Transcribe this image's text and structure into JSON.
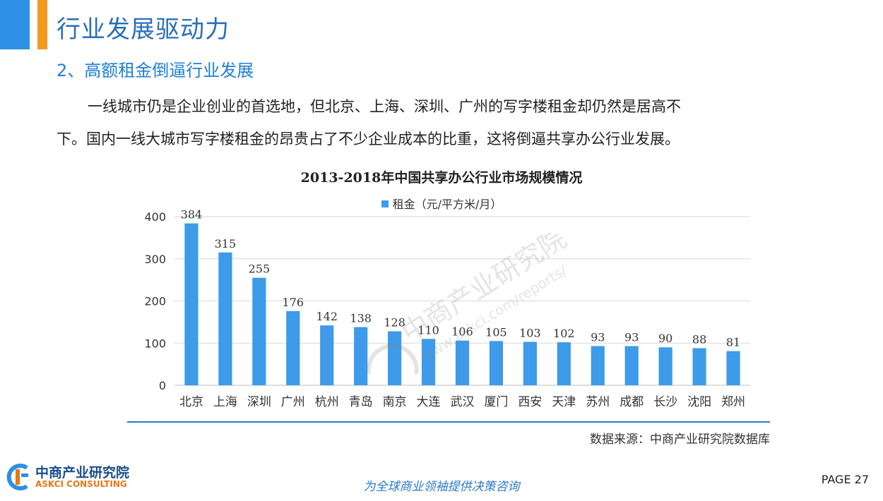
{
  "header": {
    "title": "行业发展驱动力",
    "section": "2、高额租金倒逼行业发展"
  },
  "body": {
    "paragraph_line1": "一线城市仍是企业创业的首选地，但北京、上海、深圳、广州的写字楼租金却仍然是居高不",
    "paragraph_line2": "下。国内一线大城市写字楼租金的昂贵占了不少企业成本的比重，这将倒逼共享办公行业发展。"
  },
  "chart_data": {
    "type": "bar",
    "title": "2013-2018年中国共享办公行业市场规模情况",
    "categories": [
      "北京",
      "上海",
      "深圳",
      "广州",
      "杭州",
      "青岛",
      "南京",
      "大连",
      "武汉",
      "厦门",
      "西安",
      "天津",
      "苏州",
      "成都",
      "长沙",
      "沈阳",
      "郑州"
    ],
    "series": [
      {
        "name": "租金（元/平方米/月）",
        "values": [
          384,
          315,
          255,
          176,
          142,
          138,
          128,
          110,
          106,
          105,
          103,
          102,
          93,
          93,
          90,
          88,
          81
        ],
        "color": "#3d9be9"
      }
    ],
    "ylim": [
      0,
      400
    ],
    "yticks": [
      0,
      100,
      200,
      300,
      400
    ],
    "grid": true,
    "legend": "top-center",
    "data_labels": true
  },
  "source": "数据来源：中商产业研究院数据库",
  "footer": {
    "logo_name": "中商产业研究院",
    "logo_sub": "ASKCI CONSULTING",
    "slogan": "为全球商业领袖提供决策咨询",
    "page": "PAGE  27"
  },
  "watermark": {
    "name": "中商产业研究院",
    "url": "www.askci.com/reports/"
  },
  "colors": {
    "accent_blue": "#2d8fe6",
    "accent_orange": "#f39a1e",
    "bar": "#3d9be9",
    "title_blue": "#2a6fb6"
  }
}
